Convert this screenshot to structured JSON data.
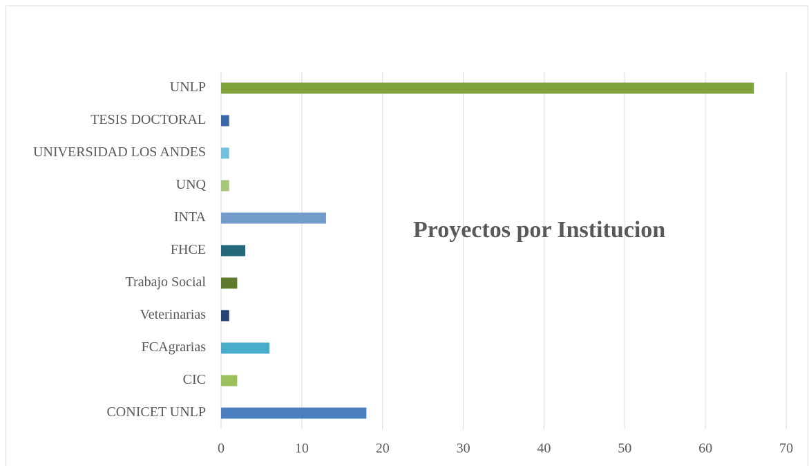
{
  "chart_data": {
    "type": "barh",
    "title": "Proyectos por Institucion",
    "categories": [
      "UNLP",
      "TESIS DOCTORAL",
      "UNIVERSIDAD LOS ANDES",
      "UNQ",
      "INTA",
      "FHCE",
      "Trabajo Social",
      "Veterinarias",
      "FCAgrarias",
      "CIC",
      "CONICET UNLP"
    ],
    "values": [
      66,
      1,
      1,
      1,
      13,
      3,
      2,
      1,
      6,
      2,
      18
    ],
    "colors": [
      "#7fa23b",
      "#3b66a8",
      "#72c0db",
      "#a9c77b",
      "#739bcc",
      "#23697b",
      "#5e7a2c",
      "#254272",
      "#4aaccb",
      "#9bc05c",
      "#4a7ebf"
    ],
    "xlim": [
      0,
      70
    ],
    "xticks": [
      0,
      10,
      20,
      30,
      40,
      50,
      60,
      70
    ],
    "grid": true
  }
}
